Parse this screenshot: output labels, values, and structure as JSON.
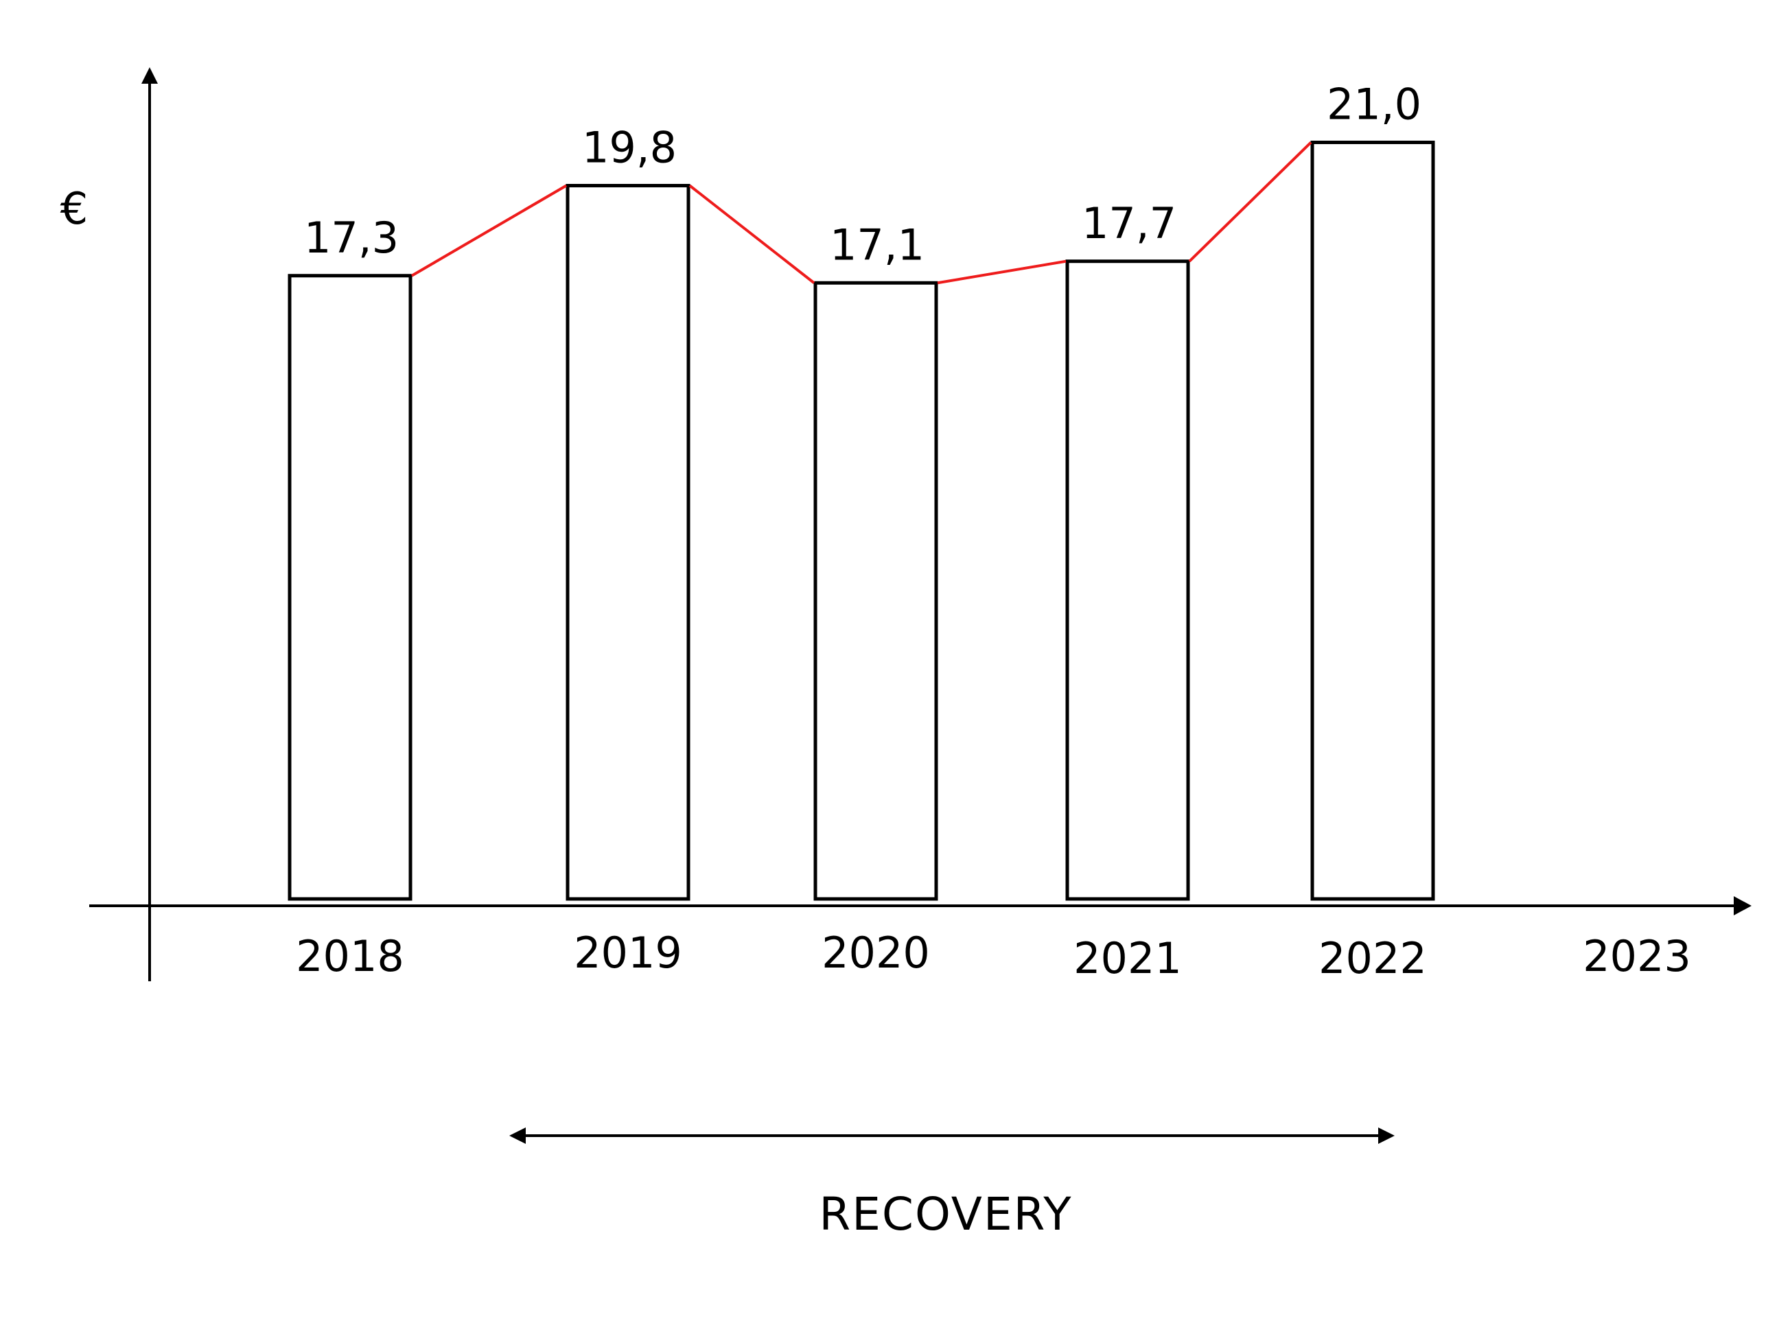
{
  "chart_data": {
    "type": "bar",
    "categories": [
      "2018",
      "2019",
      "2020",
      "2021",
      "2022",
      "2023"
    ],
    "values": [
      17.3,
      19.8,
      17.1,
      17.7,
      21.0,
      null
    ],
    "value_labels": [
      "17,3",
      "19,8",
      "17,1",
      "17,7",
      "21,0",
      ""
    ],
    "ylabel": "€",
    "trend_line": true,
    "annotation": {
      "text": "RECOVERY",
      "from": "2019",
      "to": "2022",
      "style": "double-arrow"
    },
    "grid": false
  },
  "colors": {
    "bar_fill": "#ffffff",
    "bar_stroke": "#000000",
    "trend_line": "#ee1c1c",
    "axis": "#000000",
    "text": "#000000"
  }
}
